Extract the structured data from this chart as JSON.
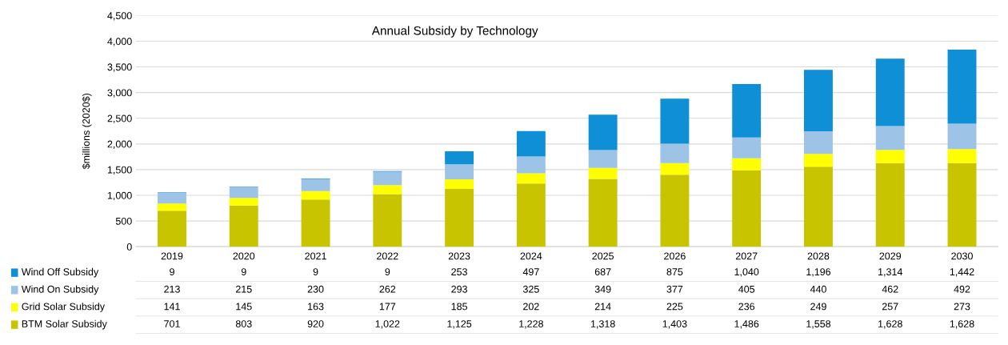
{
  "chart_data": {
    "type": "bar",
    "title": "Annual Subsidy by Technology",
    "ylabel": "$millions (2020$)",
    "categories": [
      "2019",
      "2020",
      "2021",
      "2022",
      "2023",
      "2024",
      "2025",
      "2026",
      "2027",
      "2028",
      "2029",
      "2030"
    ],
    "stacked": true,
    "legend": "bottom",
    "grid": "y",
    "ylim": [
      0,
      4500
    ],
    "yticks": [
      {
        "value": 0,
        "label": "0"
      },
      {
        "value": 500,
        "label": "500"
      },
      {
        "value": 1000,
        "label": "1,000"
      },
      {
        "value": 1500,
        "label": "1,500"
      },
      {
        "value": 2000,
        "label": "2,000"
      },
      {
        "value": 2500,
        "label": "2,500"
      },
      {
        "value": 3000,
        "label": "3,000"
      },
      {
        "value": 3500,
        "label": "3,500"
      },
      {
        "value": 4000,
        "label": "4,000"
      },
      {
        "value": 4500,
        "label": "4,500"
      }
    ],
    "series": [
      {
        "name": "BTM Solar Subsidy",
        "color": "#c8c400",
        "values": [
          701,
          803,
          920,
          1022,
          1125,
          1228,
          1318,
          1403,
          1486,
          1558,
          1628,
          1628
        ],
        "value_labels": [
          "701",
          "803",
          "920",
          "1,022",
          "1,125",
          "1,228",
          "1,318",
          "1,403",
          "1,486",
          "1,558",
          "1,628",
          "1,628"
        ]
      },
      {
        "name": "Grid Solar Subsidy",
        "color": "#ffff00",
        "values": [
          141,
          145,
          163,
          177,
          185,
          202,
          214,
          225,
          236,
          249,
          257,
          273
        ],
        "value_labels": [
          "141",
          "145",
          "163",
          "177",
          "185",
          "202",
          "214",
          "225",
          "236",
          "249",
          "257",
          "273"
        ]
      },
      {
        "name": "Wind On Subsidy",
        "color": "#9dc3e6",
        "values": [
          213,
          215,
          230,
          262,
          293,
          325,
          349,
          377,
          405,
          440,
          462,
          492
        ],
        "value_labels": [
          "213",
          "215",
          "230",
          "262",
          "293",
          "325",
          "349",
          "377",
          "405",
          "440",
          "462",
          "492"
        ]
      },
      {
        "name": "Wind Off Subsidy",
        "color": "#0e8fd6",
        "values": [
          9,
          9,
          9,
          9,
          253,
          497,
          687,
          875,
          1040,
          1196,
          1314,
          1442
        ],
        "value_labels": [
          "9",
          "9",
          "9",
          "9",
          "253",
          "497",
          "687",
          "875",
          "1,040",
          "1,196",
          "1,314",
          "1,442"
        ]
      }
    ]
  }
}
